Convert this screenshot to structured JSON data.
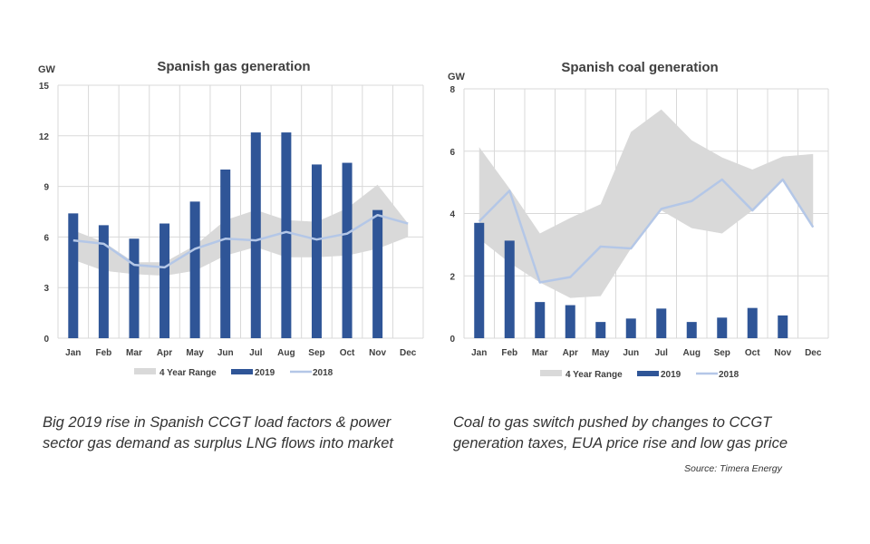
{
  "chart_data": [
    {
      "type": "bar",
      "title": "Spanish gas generation",
      "ylabel": "GW",
      "ylim": [
        0,
        15
      ],
      "yticks": [
        0,
        3,
        6,
        9,
        12,
        15
      ],
      "grid": true,
      "legend": "bottom",
      "categories": [
        "Jan",
        "Feb",
        "Mar",
        "Apr",
        "May",
        "Jun",
        "Jul",
        "Aug",
        "Sep",
        "Oct",
        "Nov",
        "Dec"
      ],
      "range": {
        "name": "4 Year Range",
        "color": "#d9d9d9",
        "lower": [
          4.65,
          4.0,
          3.8,
          3.7,
          4.0,
          4.9,
          5.4,
          4.8,
          4.8,
          4.9,
          5.3,
          6.0
        ],
        "upper": [
          6.4,
          5.7,
          4.5,
          4.5,
          5.5,
          7.0,
          7.6,
          7.0,
          6.9,
          7.7,
          9.1,
          6.8
        ]
      },
      "series": [
        {
          "name": "2019",
          "type": "bar",
          "color": "#2f5597",
          "values": [
            7.4,
            6.7,
            5.9,
            6.8,
            8.1,
            10.0,
            12.2,
            12.2,
            10.3,
            10.4,
            7.6,
            null
          ]
        },
        {
          "name": "2018",
          "type": "line",
          "color": "#b4c7e7",
          "values": [
            5.8,
            5.6,
            4.35,
            4.2,
            5.3,
            5.9,
            5.8,
            6.3,
            5.85,
            6.2,
            7.3,
            6.8
          ]
        }
      ]
    },
    {
      "type": "bar",
      "title": "Spanish coal generation",
      "ylabel": "GW",
      "ylim": [
        0,
        8
      ],
      "yticks": [
        0,
        2,
        4,
        6,
        8
      ],
      "grid": true,
      "legend": "bottom",
      "categories": [
        "Jan",
        "Feb",
        "Mar",
        "Apr",
        "May",
        "Jun",
        "Jul",
        "Aug",
        "Sep",
        "Oct",
        "Nov",
        "Dec"
      ],
      "range": {
        "name": "4 Year Range",
        "color": "#d9d9d9",
        "lower": [
          3.19,
          2.42,
          1.79,
          1.29,
          1.35,
          2.88,
          4.1,
          3.53,
          3.36,
          4.1,
          5.09,
          3.56
        ],
        "upper": [
          6.13,
          4.8,
          3.36,
          3.86,
          4.3,
          6.62,
          7.34,
          6.35,
          5.8,
          5.41,
          5.83,
          5.91
        ]
      },
      "series": [
        {
          "name": "2019",
          "type": "bar",
          "color": "#2f5597",
          "values": [
            3.7,
            3.13,
            1.16,
            1.06,
            0.52,
            0.63,
            0.95,
            0.52,
            0.66,
            0.97,
            0.73,
            null
          ]
        },
        {
          "name": "2018",
          "type": "line",
          "color": "#b4c7e7",
          "values": [
            3.75,
            4.73,
            1.79,
            1.96,
            2.94,
            2.88,
            4.15,
            4.4,
            5.09,
            4.1,
            5.09,
            3.56
          ]
        }
      ]
    }
  ],
  "captions": [
    {
      "line1": "Big 2019 rise in Spanish CCGT load factors & power",
      "line2": "sector gas demand as surplus LNG flows into market"
    },
    {
      "line1": "Coal to gas switch pushed by changes to CCGT",
      "line2": "generation taxes, EUA price rise and low gas price"
    }
  ],
  "source": "Source: Timera Energy"
}
